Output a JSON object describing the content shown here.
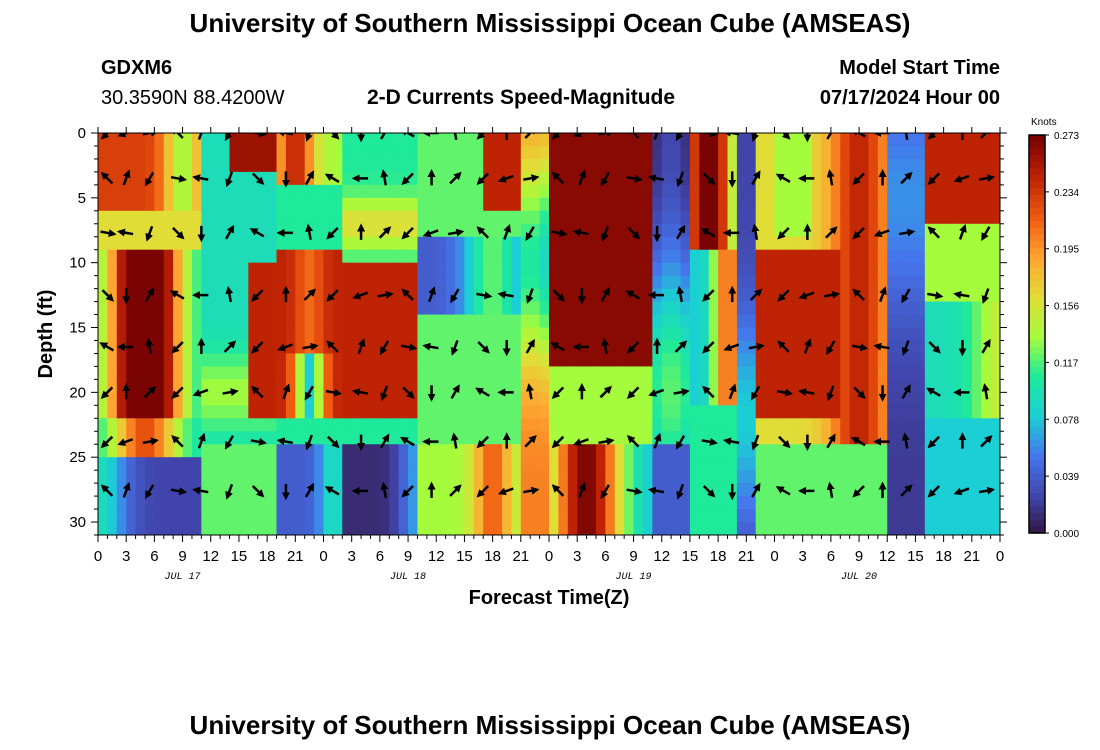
{
  "page_title": "University of Southern Mississippi Ocean Cube (AMSEAS)",
  "footer_title": "University of Southern Mississippi Ocean Cube (AMSEAS)",
  "station": {
    "id": "GDXM6",
    "coords": "30.3590N  88.4200W"
  },
  "model": {
    "start_label": "Model Start Time",
    "start_value": "07/17/2024 Hour 00"
  },
  "chart_data": {
    "type": "heatmap",
    "title": "2-D Currents Speed-Magnitude",
    "xlabel": "Forecast Time(Z)",
    "ylabel": "Depth (ft)",
    "x_hours": [
      0,
      96
    ],
    "x_ticks": [
      "0",
      "3",
      "6",
      "9",
      "12",
      "15",
      "18",
      "21",
      "0",
      "3",
      "6",
      "9",
      "12",
      "15",
      "18",
      "21",
      "0",
      "3",
      "6",
      "9",
      "12",
      "15",
      "18",
      "21",
      "0",
      "3",
      "6",
      "9",
      "12",
      "15",
      "18",
      "21",
      "0"
    ],
    "date_labels": [
      "JUL 17",
      "JUL 18",
      "JUL 19",
      "JUL 20"
    ],
    "ylim": [
      0,
      31
    ],
    "y_ticks": [
      "0",
      "5",
      "10",
      "15",
      "20",
      "25",
      "30"
    ],
    "colorbar": {
      "unit": "Knots",
      "ticks": [
        "0.273",
        "0.234",
        "0.195",
        "0.156",
        "0.117",
        "0.078",
        "0.039",
        "0.000"
      ],
      "min": 0.0,
      "max": 0.273
    },
    "arrow_depths_ft": [
      0,
      3.5,
      7.7,
      12.5,
      16.5,
      20,
      23.8,
      27.6
    ],
    "arrow_times_h": [
      1,
      3,
      5.5,
      8.5,
      11,
      14,
      17,
      20,
      22.5,
      25,
      28,
      30.5,
      33,
      35.5,
      38,
      41,
      43.5,
      46,
      49,
      51.5,
      54,
      57,
      59.5,
      62,
      65,
      67.5,
      70,
      73,
      75.5,
      78,
      81,
      83.5,
      86,
      89,
      92,
      94.5
    ]
  }
}
